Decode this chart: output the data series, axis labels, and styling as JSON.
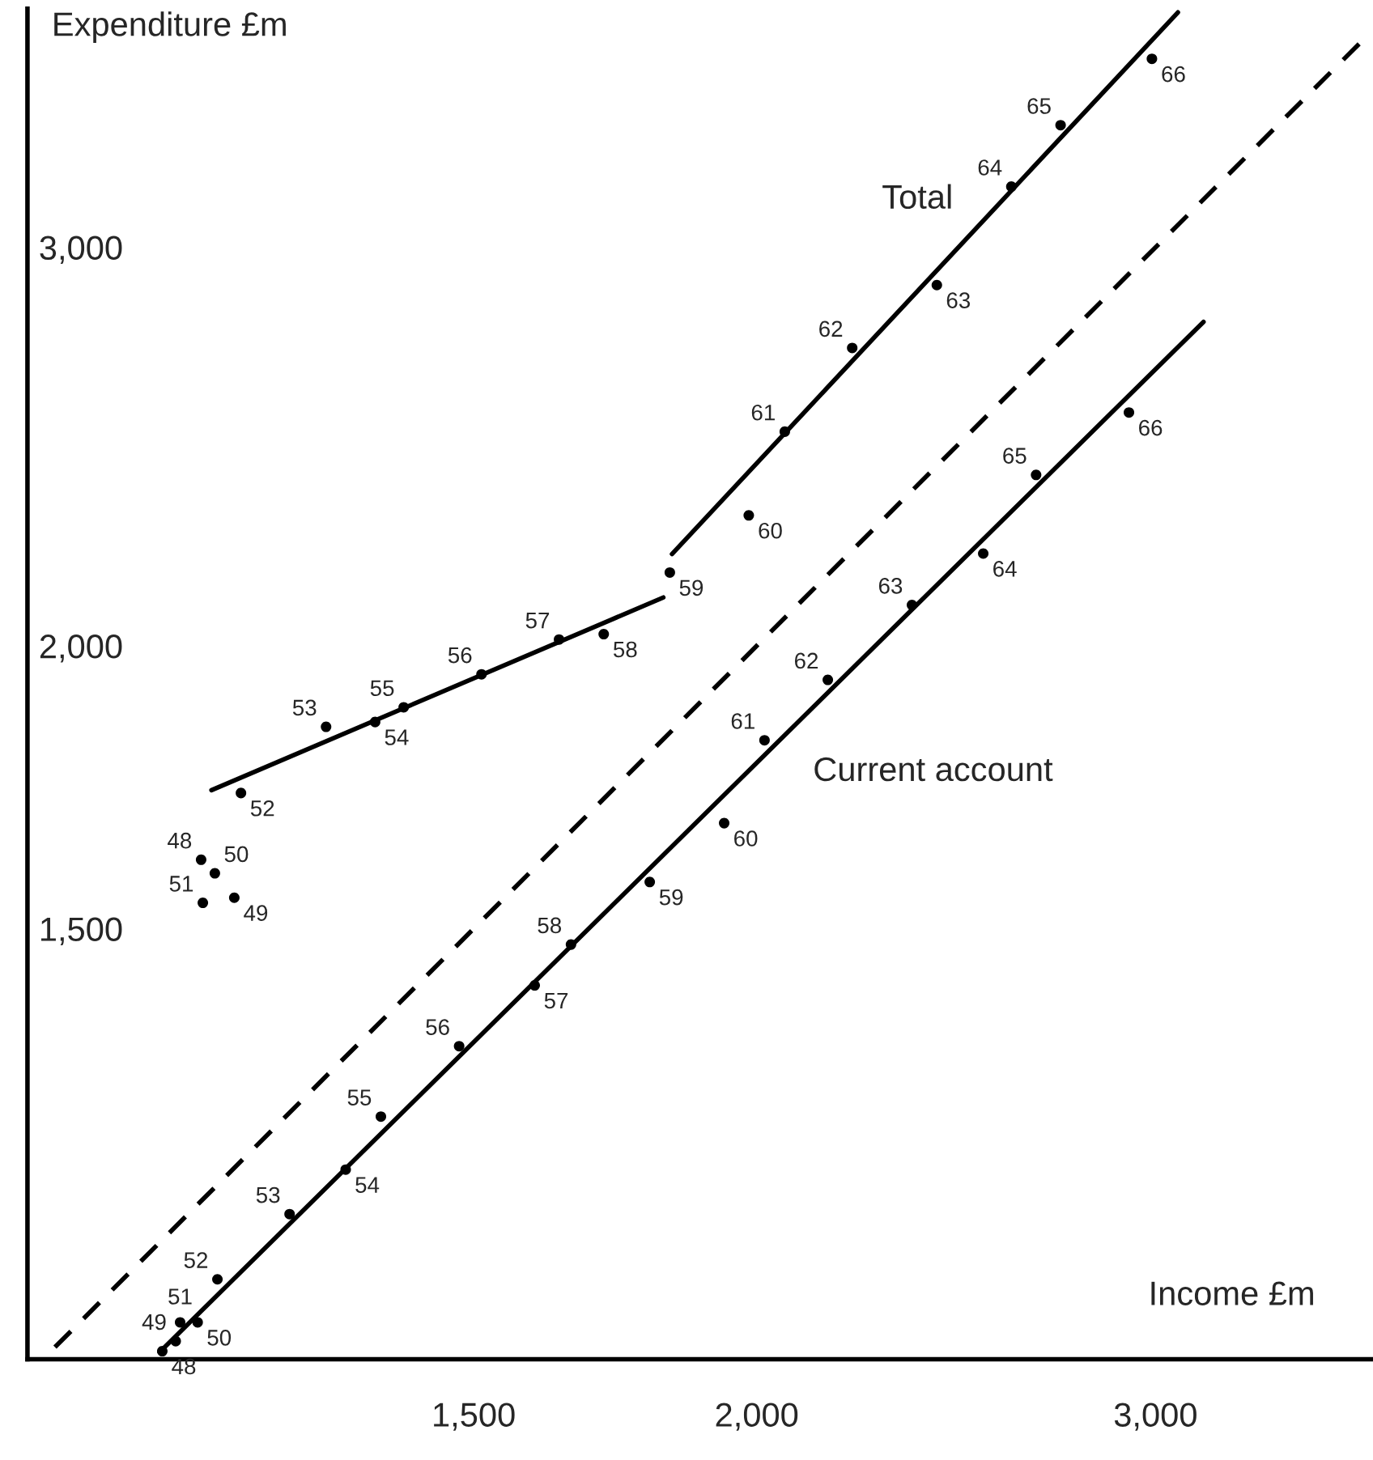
{
  "chart_data": {
    "type": "scatter",
    "xlabel": "Income £m",
    "ylabel": "Expenditure £m",
    "log": "xy",
    "xlim": [
      953,
      3737
    ],
    "ylim": [
      968,
      3824
    ],
    "xticks": [
      {
        "value": 1500,
        "label": "1,500"
      },
      {
        "value": 2000,
        "label": "2,000"
      },
      {
        "value": 3000,
        "label": "3,000"
      }
    ],
    "yticks": [
      {
        "value": 1500,
        "label": "1,500"
      },
      {
        "value": 2000,
        "label": "2,000"
      },
      {
        "value": 3000,
        "label": "3,000"
      }
    ],
    "grid": false,
    "series": [
      {
        "color": "#000000",
        "marker": "circle",
        "x": [
          1137,
          1176,
          1153,
          1139,
          1184,
          1291,
          1357,
          1397,
          1512,
          1636,
          1712,
          1831,
          1984,
          2058,
          2204,
          2402,
          2591,
          2724,
          2989
        ],
        "values": [
          1609,
          1548,
          1587,
          1540,
          1722,
          1842,
          1851,
          1879,
          1943,
          2013,
          2024,
          2155,
          2284,
          2487,
          2708,
          2887,
          3191,
          3397,
          3634
        ]
      },
      {
        "color": "#000000",
        "marker": "circle",
        "x": [
          1093,
          1108,
          1133,
          1113,
          1156,
          1244,
          1317,
          1365,
          1478,
          1596,
          1656,
          1794,
          1935,
          2016,
          2150,
          2342,
          2518,
          2657,
          2920
        ],
        "values": [
          976,
          986,
          1005,
          1005,
          1050,
          1122,
          1174,
          1239,
          1331,
          1416,
          1476,
          1573,
          1670,
          1817,
          1932,
          2085,
          2197,
          2380,
          2536
        ]
      },
      {
        "type": "line",
        "name": "Total",
        "color": "#000000",
        "line_style": "solid",
        "x": [
          1149,
          1819,
          1827,
          1835,
          3069
        ],
        "values": [
          1727,
          2101,
          null,
          2196,
          3810
        ]
      },
      {
        "type": "line",
        "name": "Current account",
        "color": "#000000",
        "line_style": "solid",
        "x": [
          1090,
          3150
        ],
        "values": [
          975,
          2781
        ]
      },
      {
        "type": "line",
        "color": "#000000",
        "line_style": "dashed",
        "x": [
          980,
          3700
        ],
        "values": [
          980,
          3700
        ]
      }
    ],
    "annotations": [
      {
        "text": "48",
        "x": 1137,
        "y": 1609
      },
      {
        "text": "49",
        "x": 1176,
        "y": 1548
      },
      {
        "text": "50",
        "x": 1153,
        "y": 1587
      },
      {
        "text": "51",
        "x": 1139,
        "y": 1540
      },
      {
        "text": "52",
        "x": 1184,
        "y": 1722
      },
      {
        "text": "53",
        "x": 1291,
        "y": 1842
      },
      {
        "text": "54",
        "x": 1357,
        "y": 1851
      },
      {
        "text": "55",
        "x": 1397,
        "y": 1879
      },
      {
        "text": "56",
        "x": 1512,
        "y": 1943
      },
      {
        "text": "57",
        "x": 1636,
        "y": 2013
      },
      {
        "text": "58",
        "x": 1712,
        "y": 2024
      },
      {
        "text": "59",
        "x": 1831,
        "y": 2155
      },
      {
        "text": "60",
        "x": 1984,
        "y": 2284
      },
      {
        "text": "61",
        "x": 2058,
        "y": 2487
      },
      {
        "text": "62",
        "x": 2204,
        "y": 2708
      },
      {
        "text": "63",
        "x": 2402,
        "y": 2887
      },
      {
        "text": "64",
        "x": 2591,
        "y": 3191
      },
      {
        "text": "65",
        "x": 2724,
        "y": 3397
      },
      {
        "text": "66",
        "x": 2989,
        "y": 3634
      },
      {
        "text": "48",
        "x": 1093,
        "y": 976
      },
      {
        "text": "49",
        "x": 1108,
        "y": 986
      },
      {
        "text": "50",
        "x": 1133,
        "y": 1005
      },
      {
        "text": "51",
        "x": 1113,
        "y": 1005
      },
      {
        "text": "52",
        "x": 1156,
        "y": 1050
      },
      {
        "text": "53",
        "x": 1244,
        "y": 1122
      },
      {
        "text": "54",
        "x": 1317,
        "y": 1174
      },
      {
        "text": "55",
        "x": 1365,
        "y": 1239
      },
      {
        "text": "56",
        "x": 1478,
        "y": 1331
      },
      {
        "text": "57",
        "x": 1596,
        "y": 1416
      },
      {
        "text": "58",
        "x": 1656,
        "y": 1476
      },
      {
        "text": "59",
        "x": 1794,
        "y": 1573
      },
      {
        "text": "60",
        "x": 1935,
        "y": 1670
      },
      {
        "text": "61",
        "x": 2016,
        "y": 1817
      },
      {
        "text": "62",
        "x": 2150,
        "y": 1932
      },
      {
        "text": "63",
        "x": 2342,
        "y": 2085
      },
      {
        "text": "64",
        "x": 2518,
        "y": 2197
      },
      {
        "text": "65",
        "x": 2657,
        "y": 2380
      },
      {
        "text": "66",
        "x": 2920,
        "y": 2536
      }
    ]
  }
}
